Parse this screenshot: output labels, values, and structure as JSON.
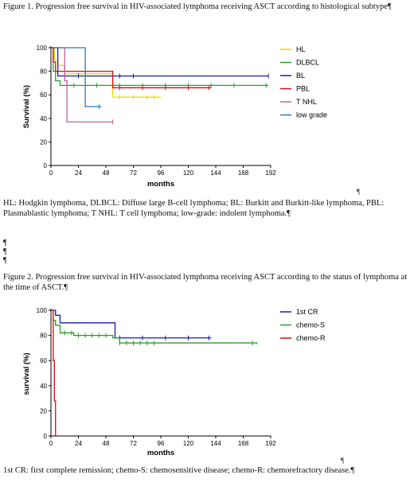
{
  "figure1": {
    "title": "Figure 1. Progression free survival in HIV-associated lymphoma receiving ASCT according to histological subtype¶",
    "caption": "HL: Hodgkin lymphoma, DLBCL: Diffuse large B-cell lymphoma; BL: Burkitt and Burkitt-like lymphoma, PBL: Plasmablastic lymphoma; T NHL: T cell lymphoma; low-grade: indolent lymphoma.¶",
    "caption_mark": "¶"
  },
  "blank_paragraph_marks": [
    "¶",
    "¶",
    "¶"
  ],
  "figure2": {
    "title": "Figure 2. Progression free survival in HIV-associated lymphoma receiving ASCT according to the status of lymphoma at the time of ASCT.¶",
    "caption": "1st CR: first complete remission; chemo-S: chemosensitive disease; chemo-R: chemorefractory disease.¶",
    "caption_mark": "¶"
  },
  "chart_data": [
    {
      "type": "line",
      "subtype": "kaplan-meier step",
      "xlabel": "months",
      "ylabel": "Survival (%)",
      "xlim": [
        0,
        192
      ],
      "ylim": [
        0,
        100
      ],
      "xticks": [
        0,
        24,
        48,
        72,
        96,
        120,
        144,
        168,
        192
      ],
      "yticks": [
        0,
        20,
        40,
        60,
        80,
        100
      ],
      "legend_position": "right",
      "series": [
        {
          "name": "HL",
          "color": "#e8d800",
          "x": [
            0,
            3,
            6,
            12,
            54,
            96
          ],
          "y": [
            100,
            90,
            85,
            78,
            58,
            58
          ],
          "censor_x": [
            60,
            72,
            84,
            90
          ]
        },
        {
          "name": "DLBCL",
          "color": "#2a9d2a",
          "x": [
            0,
            2,
            4,
            8,
            190
          ],
          "y": [
            100,
            80,
            72,
            68,
            68
          ],
          "censor_x": [
            20,
            40,
            60,
            80,
            100,
            120,
            140,
            160,
            188
          ]
        },
        {
          "name": "BL",
          "color": "#1a1aaa",
          "x": [
            0,
            6,
            190
          ],
          "y": [
            100,
            76,
            76
          ],
          "censor_x": [
            12,
            24,
            60,
            72,
            190
          ]
        },
        {
          "name": "PBL",
          "color": "#cc1010",
          "x": [
            0,
            2,
            4,
            54,
            140
          ],
          "y": [
            100,
            88,
            80,
            66,
            66
          ],
          "censor_x": [
            60,
            80,
            100,
            120,
            138
          ]
        },
        {
          "name": "T NHL",
          "color": "#c060a0",
          "x": [
            0,
            12,
            14,
            54
          ],
          "y": [
            100,
            72,
            37,
            37
          ],
          "censor_x": [
            54
          ]
        },
        {
          "name": "low grade",
          "color": "#2a7ab8",
          "x": [
            0,
            28,
            30,
            44
          ],
          "y": [
            100,
            100,
            50,
            50
          ],
          "censor_x": [
            42
          ]
        }
      ]
    },
    {
      "type": "line",
      "subtype": "kaplan-meier step",
      "xlabel": "months",
      "ylabel": "survival (%)",
      "xlim": [
        0,
        192
      ],
      "ylim": [
        0,
        100
      ],
      "xticks": [
        0,
        24,
        48,
        72,
        96,
        120,
        144,
        168,
        192
      ],
      "yticks": [
        0,
        20,
        40,
        60,
        80,
        100
      ],
      "legend_position": "right",
      "series": [
        {
          "name": "1st CR",
          "color": "#1a1aaa",
          "x": [
            0,
            4,
            8,
            54,
            56,
            140
          ],
          "y": [
            100,
            96,
            90,
            90,
            78,
            78
          ],
          "censor_x": [
            60,
            80,
            100,
            120,
            138
          ]
        },
        {
          "name": "chemo-S",
          "color": "#2a9d2a",
          "x": [
            0,
            2,
            4,
            8,
            20,
            54,
            60,
            180
          ],
          "y": [
            100,
            92,
            88,
            82,
            80,
            78,
            74,
            73
          ],
          "censor_x": [
            12,
            18,
            24,
            30,
            36,
            42,
            48,
            60,
            66,
            72,
            78,
            84,
            90,
            176
          ]
        },
        {
          "name": "chemo-R",
          "color": "#cc1010",
          "x": [
            0,
            2,
            3,
            4
          ],
          "y": [
            100,
            60,
            28,
            0
          ],
          "censor_x": []
        }
      ]
    }
  ]
}
